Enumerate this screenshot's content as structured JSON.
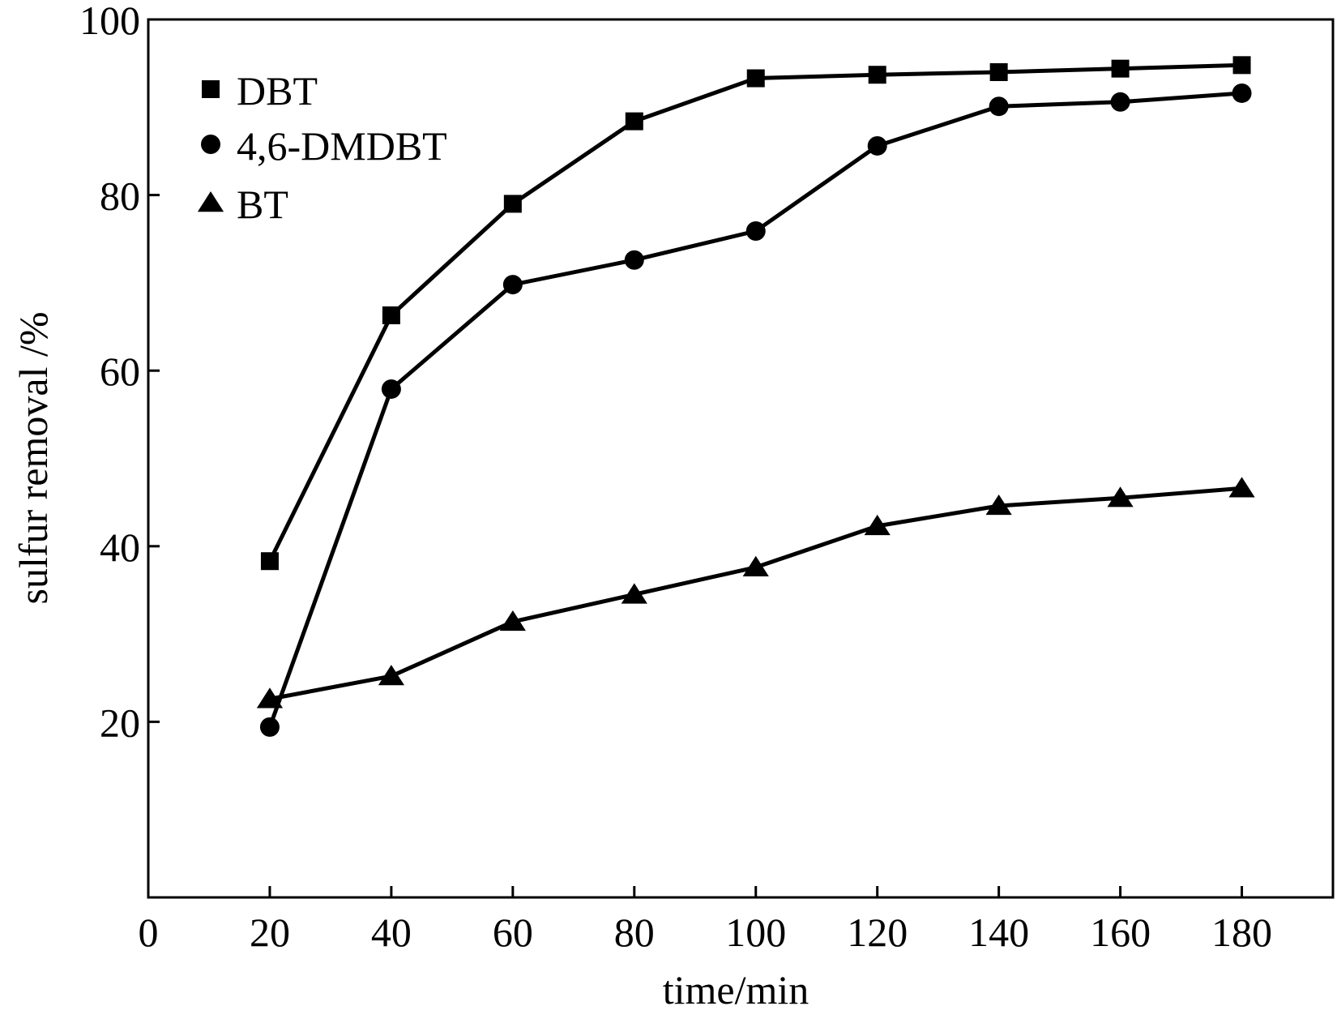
{
  "chart_data": {
    "type": "line",
    "xlabel": "time/min",
    "ylabel": "sulfur removal /%",
    "xlim": [
      0,
      195
    ],
    "ylim": [
      0,
      100
    ],
    "x_ticks": [
      "0",
      "20",
      "40",
      "60",
      "80",
      "100",
      "120",
      "140",
      "160",
      "180"
    ],
    "y_ticks": [
      "20",
      "40",
      "60",
      "80",
      "100"
    ],
    "grid": false,
    "legend_position": "top-left",
    "x": [
      20,
      40,
      60,
      80,
      100,
      120,
      140,
      160,
      180
    ],
    "series": [
      {
        "name": "DBT",
        "marker": "square",
        "color": "#000000",
        "values": [
          38.3,
          66.3,
          79.0,
          88.4,
          93.3,
          93.7,
          94.0,
          94.4,
          94.8
        ]
      },
      {
        "name": "4,6-DMDBT",
        "marker": "circle",
        "color": "#000000",
        "values": [
          19.4,
          57.9,
          69.8,
          72.6,
          75.9,
          85.6,
          90.1,
          90.6,
          91.6
        ]
      },
      {
        "name": "BT",
        "marker": "triangle",
        "color": "#000000",
        "values": [
          22.6,
          25.2,
          31.4,
          34.5,
          37.6,
          42.3,
          44.6,
          45.5,
          46.6
        ]
      }
    ]
  }
}
